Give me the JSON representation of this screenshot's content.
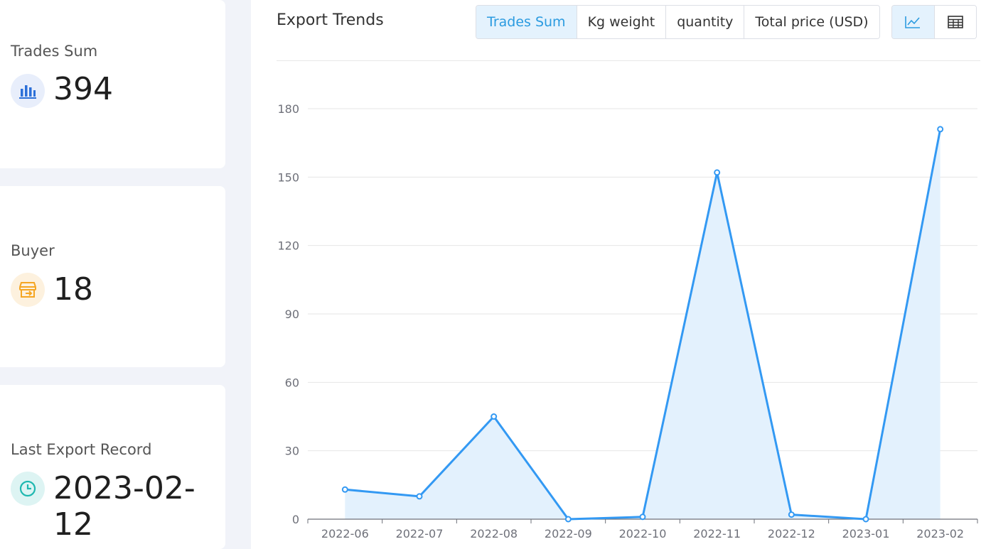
{
  "stats": [
    {
      "label": "Trades Sum",
      "value": "394",
      "icon": "bar-chart-icon",
      "color": "#2b6fd8",
      "bg": "#e8eefb"
    },
    {
      "label": "Buyer",
      "value": "18",
      "icon": "store-icon",
      "color": "#f5a623",
      "bg": "#fdf1de"
    },
    {
      "label": "Last Export Record",
      "value": "2023-02-12",
      "icon": "clock-icon",
      "color": "#1fb8b0",
      "bg": "#ddf4f3"
    }
  ],
  "chart_panel": {
    "title": "Export Trends",
    "tabs": [
      "Trades Sum",
      "Kg weight",
      "quantity",
      "Total price (USD)"
    ],
    "active_tab": "Trades Sum",
    "views": [
      "line-chart-icon",
      "table-icon"
    ],
    "active_view": "line-chart-icon"
  },
  "chart_data": {
    "type": "area",
    "categories": [
      "2022-06",
      "2022-07",
      "2022-08",
      "2022-09",
      "2022-10",
      "2022-11",
      "2022-12",
      "2023-01",
      "2023-02"
    ],
    "series": [
      {
        "values": [
          13,
          10,
          45,
          0,
          1,
          152,
          2,
          0,
          171
        ]
      }
    ],
    "ylim": [
      0,
      180
    ],
    "yticks": [
      0,
      30,
      60,
      90,
      120,
      150,
      180
    ],
    "title": "",
    "xlabel": "",
    "ylabel": "",
    "grid": true,
    "line_color": "#3399f3",
    "fill_color": "#e3f1fd"
  }
}
